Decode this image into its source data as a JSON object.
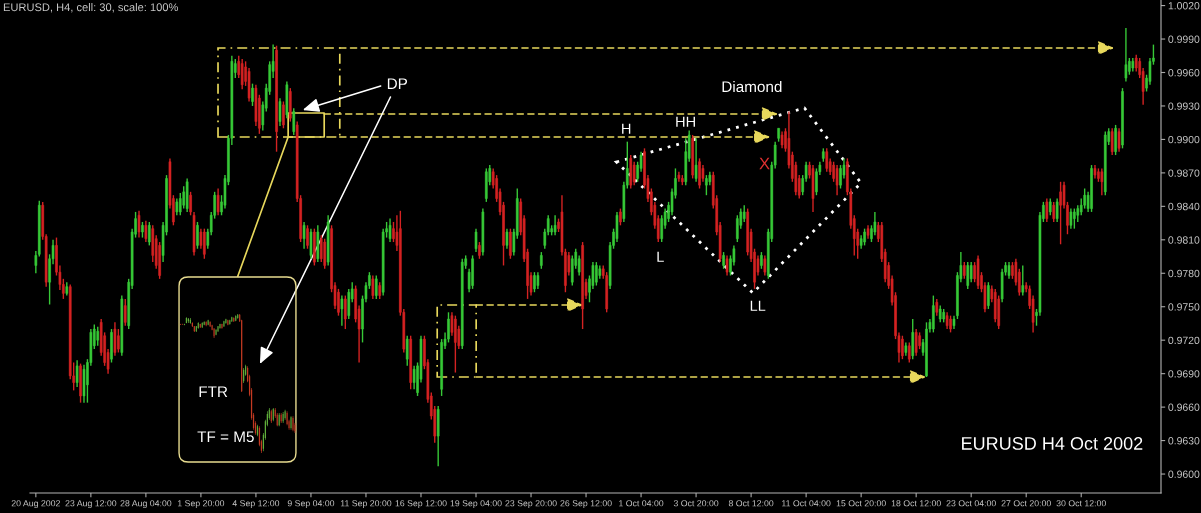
{
  "chart_data": {
    "type": "candlestick",
    "title": "EURUSD, H4, cell: 30, scale: 100%",
    "annotations": [
      "DP",
      "Diamond",
      "H",
      "HH",
      "L",
      "LL",
      "X",
      "FTR",
      "TF = M5",
      "EURUSD H4 Oct 2002"
    ],
    "categories": [
      "20 Aug 2002",
      null,
      null,
      null,
      null,
      null,
      null,
      null,
      null,
      null,
      null,
      null,
      null,
      null,
      null,
      null,
      "23 Aug 12:00",
      null,
      null,
      null,
      null,
      null,
      null,
      null,
      null,
      null,
      null,
      null,
      null,
      null,
      null,
      null,
      "28 Aug 04:00",
      null,
      null,
      null,
      null,
      null,
      null,
      null,
      null,
      null,
      null,
      null,
      null,
      null,
      null,
      null,
      "1 Sep 20:00",
      null,
      null,
      null,
      null,
      null,
      null,
      null,
      null,
      null,
      null,
      null,
      null,
      null,
      null,
      null,
      "4 Sep 12:00",
      null,
      null,
      null,
      null,
      null,
      null,
      null,
      null,
      null,
      null,
      null,
      null,
      null,
      null,
      null,
      "9 Sep 04:00",
      null,
      null,
      null,
      null,
      null,
      null,
      null,
      null,
      null,
      null,
      null,
      null,
      null,
      null,
      null,
      "11 Sep 20:00",
      null,
      null,
      null,
      null,
      null,
      null,
      null,
      null,
      null,
      null,
      null,
      null,
      null,
      null,
      null,
      "16 Sep 12:00",
      null,
      null,
      null,
      null,
      null,
      null,
      null,
      null,
      null,
      null,
      null,
      null,
      null,
      null,
      null,
      "19 Sep 04:00",
      null,
      null,
      null,
      null,
      null,
      null,
      null,
      null,
      null,
      null,
      null,
      null,
      null,
      null,
      null,
      "23 Sep 20:00",
      null,
      null,
      null,
      null,
      null,
      null,
      null,
      null,
      null,
      null,
      null,
      null,
      null,
      null,
      null,
      "26 Sep 12:00",
      null,
      null,
      null,
      null,
      null,
      null,
      null,
      null,
      null,
      null,
      null,
      null,
      null,
      null,
      null,
      "1 Oct 04:00",
      null,
      null,
      null,
      null,
      null,
      null,
      null,
      null,
      null,
      null,
      null,
      null,
      null,
      null,
      null,
      "3 Oct 20:00",
      null,
      null,
      null,
      null,
      null,
      null,
      null,
      null,
      null,
      null,
      null,
      null,
      null,
      null,
      null,
      "8 Oct 12:00",
      null,
      null,
      null,
      null,
      null,
      null,
      null,
      null,
      null,
      null,
      null,
      null,
      null,
      null,
      null,
      "11 Oct 04:00",
      null,
      null,
      null,
      null,
      null,
      null,
      null,
      null,
      null,
      null,
      null,
      null,
      null,
      null,
      null,
      "15 Oct 20:00",
      null,
      null,
      null,
      null,
      null,
      null,
      null,
      null,
      null,
      null,
      null,
      null,
      null,
      null,
      null,
      "18 Oct 12:00",
      null,
      null,
      null,
      null,
      null,
      null,
      null,
      null,
      null,
      null,
      null,
      null,
      null,
      null,
      null,
      "23 Oct 04:00",
      null,
      null,
      null,
      null,
      null,
      null,
      null,
      null,
      null,
      null,
      null,
      null,
      null,
      null,
      null,
      "27 Oct 20:00",
      null,
      null,
      null,
      null,
      null,
      null,
      null,
      null,
      null,
      null,
      null,
      null,
      null,
      null,
      null,
      "30 Oct 12:00",
      null,
      null,
      null,
      null,
      null,
      null,
      null,
      null,
      null,
      null,
      null,
      null,
      null,
      null,
      null,
      null,
      null,
      null,
      null,
      null,
      null
    ],
    "ohlc": [
      [
        0.9787,
        0.98,
        0.978,
        0.9796
      ],
      [
        0.9797,
        0.9845,
        0.9795,
        0.9841
      ],
      [
        0.9841,
        0.9844,
        0.981,
        0.9813
      ],
      [
        0.9813,
        0.9815,
        0.9768,
        0.9772
      ],
      [
        0.9772,
        0.9797,
        0.9752,
        0.9793
      ],
      [
        0.9793,
        0.981,
        0.9788,
        0.9805
      ],
      [
        0.9805,
        0.9812,
        0.9778,
        0.9781
      ],
      [
        0.9781,
        0.9787,
        0.9765,
        0.977
      ],
      [
        0.977,
        0.9775,
        0.9757,
        0.9762
      ],
      [
        0.9762,
        0.9772,
        0.976,
        0.9768
      ],
      [
        0.9768,
        0.977,
        0.9685,
        0.9688
      ],
      [
        0.9688,
        0.97,
        0.9675,
        0.9682
      ],
      [
        0.9682,
        0.9702,
        0.9678,
        0.9697
      ],
      [
        0.9697,
        0.9699,
        0.9664,
        0.967
      ],
      [
        0.967,
        0.9698,
        0.9664,
        0.9694
      ],
      [
        0.968,
        0.9703,
        0.9664,
        0.97
      ],
      [
        0.97,
        0.973,
        0.9697,
        0.9727
      ],
      [
        0.9715,
        0.9734,
        0.9712,
        0.973
      ],
      [
        0.972,
        0.9732,
        0.9715,
        0.9728
      ],
      [
        0.9736,
        0.9739,
        0.9706,
        0.9709
      ],
      [
        0.9724,
        0.9727,
        0.9697,
        0.97
      ],
      [
        0.9709,
        0.9712,
        0.969,
        0.9694
      ],
      [
        0.9703,
        0.973,
        0.97,
        0.9727
      ],
      [
        0.973,
        0.9736,
        0.9706,
        0.9709
      ],
      [
        0.9724,
        0.973,
        0.9709,
        0.9712
      ],
      [
        0.9709,
        0.976,
        0.9706,
        0.9757
      ],
      [
        0.9751,
        0.9757,
        0.9733,
        0.9736
      ],
      [
        0.9733,
        0.9775,
        0.973,
        0.9772
      ],
      [
        0.9769,
        0.982,
        0.9766,
        0.9817
      ],
      [
        0.9815,
        0.9835,
        0.9812,
        0.9829
      ],
      [
        0.9832,
        0.9836,
        0.9812,
        0.9817
      ],
      [
        0.9817,
        0.9826,
        0.9812,
        0.9823
      ],
      [
        0.9823,
        0.9827,
        0.9808,
        0.9811
      ],
      [
        0.9808,
        0.9826,
        0.9805,
        0.9823
      ],
      [
        0.982,
        0.9823,
        0.979,
        0.9796
      ],
      [
        0.9811,
        0.9814,
        0.9784,
        0.9787
      ],
      [
        0.9805,
        0.9808,
        0.9775,
        0.9778
      ],
      [
        0.9796,
        0.9826,
        0.979,
        0.9823
      ],
      [
        0.9817,
        0.9868,
        0.9814,
        0.9865
      ],
      [
        0.988,
        0.9883,
        0.9838,
        0.9841
      ],
      [
        0.9847,
        0.985,
        0.9823,
        0.9826
      ],
      [
        0.9835,
        0.9847,
        0.9832,
        0.9844
      ],
      [
        0.9835,
        0.9852,
        0.9832,
        0.9847
      ],
      [
        0.9841,
        0.9858,
        0.9838,
        0.9853
      ],
      [
        0.9838,
        0.9865,
        0.9835,
        0.9862
      ],
      [
        0.985,
        0.9853,
        0.9832,
        0.9835
      ],
      [
        0.9832,
        0.9835,
        0.9796,
        0.9799
      ],
      [
        0.9805,
        0.9826,
        0.9802,
        0.9823
      ],
      [
        0.9817,
        0.982,
        0.9802,
        0.9805
      ],
      [
        0.9817,
        0.982,
        0.9793,
        0.9797
      ],
      [
        0.9805,
        0.982,
        0.9802,
        0.9817
      ],
      [
        0.9817,
        0.9835,
        0.9814,
        0.9832
      ],
      [
        0.9832,
        0.9853,
        0.9829,
        0.985
      ],
      [
        0.985,
        0.9856,
        0.9832,
        0.9835
      ],
      [
        0.9835,
        0.985,
        0.9832,
        0.9844
      ],
      [
        0.9841,
        0.9868,
        0.9838,
        0.9865
      ],
      [
        0.9862,
        0.9904,
        0.9859,
        0.9901
      ],
      [
        0.9901,
        0.9975,
        0.9895,
        0.997
      ],
      [
        0.996,
        0.9972,
        0.9955,
        0.9968
      ],
      [
        0.997,
        0.9975,
        0.9955,
        0.9958
      ],
      [
        0.9968,
        0.9972,
        0.9945,
        0.9949
      ],
      [
        0.9965,
        0.997,
        0.9948,
        0.9952
      ],
      [
        0.9961,
        0.9964,
        0.9934,
        0.9937
      ],
      [
        0.9934,
        0.995,
        0.993,
        0.9946
      ],
      [
        0.9946,
        0.9949,
        0.9912,
        0.9916
      ],
      [
        0.9937,
        0.994,
        0.9905,
        0.991
      ],
      [
        0.9913,
        0.9934,
        0.9908,
        0.9931
      ],
      [
        0.9928,
        0.995,
        0.9925,
        0.9946
      ],
      [
        0.9943,
        0.997,
        0.994,
        0.9967
      ],
      [
        0.9961,
        0.9985,
        0.9955,
        0.997
      ],
      [
        0.998,
        0.9984,
        0.9889,
        0.9907
      ],
      [
        0.9916,
        0.9937,
        0.9912,
        0.9934
      ],
      [
        0.9931,
        0.9934,
        0.991,
        0.9913
      ],
      [
        0.9922,
        0.9952,
        0.9919,
        0.9949
      ],
      [
        0.9943,
        0.9946,
        0.9916,
        0.9919
      ],
      [
        0.9907,
        0.9928,
        0.9904,
        0.9925
      ],
      [
        0.9913,
        0.9916,
        0.9844,
        0.9847
      ],
      [
        0.9847,
        0.985,
        0.9808,
        0.9811
      ],
      [
        0.9811,
        0.9826,
        0.9802,
        0.9823
      ],
      [
        0.982,
        0.9823,
        0.9802,
        0.9805
      ],
      [
        0.9796,
        0.982,
        0.9793,
        0.9817
      ],
      [
        0.9817,
        0.982,
        0.9787,
        0.979
      ],
      [
        0.9793,
        0.9823,
        0.979,
        0.9817
      ],
      [
        0.9811,
        0.9814,
        0.979,
        0.9793
      ],
      [
        0.9808,
        0.9811,
        0.9784,
        0.9787
      ],
      [
        0.979,
        0.9832,
        0.9787,
        0.9826
      ],
      [
        0.982,
        0.9823,
        0.9763,
        0.9766
      ],
      [
        0.9769,
        0.9772,
        0.9748,
        0.9751
      ],
      [
        0.9763,
        0.9766,
        0.9742,
        0.9745
      ],
      [
        0.9748,
        0.976,
        0.9733,
        0.9757
      ],
      [
        0.9757,
        0.976,
        0.973,
        0.9739
      ],
      [
        0.9742,
        0.9766,
        0.9739,
        0.9763
      ],
      [
        0.9757,
        0.9772,
        0.9754,
        0.9766
      ],
      [
        0.9766,
        0.9769,
        0.9736,
        0.9739
      ],
      [
        0.9748,
        0.9751,
        0.97,
        0.973
      ],
      [
        0.973,
        0.976,
        0.9718,
        0.9757
      ],
      [
        0.9757,
        0.9772,
        0.9754,
        0.9769
      ],
      [
        0.9769,
        0.9781,
        0.9766,
        0.9778
      ],
      [
        0.9775,
        0.9778,
        0.9757,
        0.976
      ],
      [
        0.976,
        0.9778,
        0.9757,
        0.9775
      ],
      [
        0.9769,
        0.9772,
        0.9757,
        0.976
      ],
      [
        0.9763,
        0.982,
        0.976,
        0.9817
      ],
      [
        0.9817,
        0.9826,
        0.9812,
        0.982
      ],
      [
        0.9811,
        0.9829,
        0.9808,
        0.9823
      ],
      [
        0.982,
        0.9826,
        0.9808,
        0.9811
      ],
      [
        0.9817,
        0.9832,
        0.98,
        0.9805
      ],
      [
        0.982,
        0.9836,
        0.9742,
        0.9745
      ],
      [
        0.9745,
        0.9748,
        0.9709,
        0.9712
      ],
      [
        0.9703,
        0.9724,
        0.9697,
        0.9721
      ],
      [
        0.9721,
        0.9724,
        0.9676,
        0.9682
      ],
      [
        0.9682,
        0.9697,
        0.9676,
        0.9694
      ],
      [
        0.9673,
        0.97,
        0.967,
        0.9697
      ],
      [
        0.9685,
        0.9724,
        0.9682,
        0.9721
      ],
      [
        0.9721,
        0.9724,
        0.9694,
        0.9697
      ],
      [
        0.97,
        0.9703,
        0.9664,
        0.9667
      ],
      [
        0.967,
        0.9673,
        0.9649,
        0.9652
      ],
      [
        0.9658,
        0.9661,
        0.9628,
        0.9634
      ],
      [
        0.9634,
        0.9661,
        0.9607,
        0.9658
      ],
      [
        0.9676,
        0.9721,
        0.967,
        0.9718
      ],
      [
        0.9715,
        0.9727,
        0.9712,
        0.9721
      ],
      [
        0.9721,
        0.9745,
        0.9718,
        0.9739
      ],
      [
        0.9742,
        0.9745,
        0.9724,
        0.9727
      ],
      [
        0.9739,
        0.9742,
        0.9691,
        0.9718
      ],
      [
        0.973,
        0.9733,
        0.9712,
        0.9715
      ],
      [
        0.9715,
        0.9793,
        0.9712,
        0.979
      ],
      [
        0.9787,
        0.9796,
        0.9784,
        0.9793
      ],
      [
        0.9766,
        0.9784,
        0.9763,
        0.9781
      ],
      [
        0.9769,
        0.9796,
        0.9766,
        0.9793
      ],
      [
        0.9802,
        0.982,
        0.9799,
        0.9817
      ],
      [
        0.9805,
        0.9808,
        0.9793,
        0.9796
      ],
      [
        0.9799,
        0.9838,
        0.9796,
        0.9835
      ],
      [
        0.9847,
        0.9874,
        0.9844,
        0.9871
      ],
      [
        0.9862,
        0.9877,
        0.9859,
        0.9874
      ],
      [
        0.9871,
        0.9874,
        0.9856,
        0.9859
      ],
      [
        0.9865,
        0.9868,
        0.9844,
        0.9847
      ],
      [
        0.9853,
        0.9856,
        0.9832,
        0.9835
      ],
      [
        0.9841,
        0.9844,
        0.9787,
        0.9805
      ],
      [
        0.9805,
        0.982,
        0.9802,
        0.9817
      ],
      [
        0.9817,
        0.982,
        0.9793,
        0.9796
      ],
      [
        0.9799,
        0.982,
        0.9796,
        0.9817
      ],
      [
        0.9814,
        0.9856,
        0.9811,
        0.9847
      ],
      [
        0.9844,
        0.9847,
        0.9814,
        0.9817
      ],
      [
        0.9829,
        0.9832,
        0.979,
        0.9793
      ],
      [
        0.9799,
        0.9802,
        0.9757,
        0.9769
      ],
      [
        0.9778,
        0.9781,
        0.976,
        0.9763
      ],
      [
        0.9766,
        0.9781,
        0.9763,
        0.9778
      ],
      [
        0.9769,
        0.9781,
        0.9766,
        0.9778
      ],
      [
        0.9787,
        0.9799,
        0.9784,
        0.9796
      ],
      [
        0.9805,
        0.982,
        0.9802,
        0.9817
      ],
      [
        0.9817,
        0.9832,
        0.9814,
        0.9829
      ],
      [
        0.9817,
        0.9823,
        0.9814,
        0.982
      ],
      [
        0.9817,
        0.9832,
        0.9814,
        0.9823
      ],
      [
        0.9826,
        0.9829,
        0.9817,
        0.982
      ],
      [
        0.9835,
        0.985,
        0.9796,
        0.9799
      ],
      [
        0.9799,
        0.9802,
        0.9763,
        0.9769
      ],
      [
        0.9796,
        0.9799,
        0.9778,
        0.9781
      ],
      [
        0.9772,
        0.9796,
        0.9769,
        0.9793
      ],
      [
        0.9787,
        0.9802,
        0.9784,
        0.9799
      ],
      [
        0.9781,
        0.9796,
        0.9778,
        0.9793
      ],
      [
        0.9805,
        0.9808,
        0.973,
        0.9748
      ],
      [
        0.9772,
        0.9775,
        0.9757,
        0.976
      ],
      [
        0.9763,
        0.9778,
        0.9754,
        0.9775
      ],
      [
        0.9769,
        0.979,
        0.9766,
        0.9787
      ],
      [
        0.9772,
        0.979,
        0.9769,
        0.9787
      ],
      [
        0.9778,
        0.9787,
        0.9775,
        0.9784
      ],
      [
        0.9784,
        0.9787,
        0.9775,
        0.9778
      ],
      [
        0.9778,
        0.9781,
        0.9745,
        0.9748
      ],
      [
        0.9769,
        0.9808,
        0.9766,
        0.9805
      ],
      [
        0.9805,
        0.982,
        0.9802,
        0.9817
      ],
      [
        0.9811,
        0.9835,
        0.9808,
        0.9832
      ],
      [
        0.9835,
        0.9838,
        0.9823,
        0.9826
      ],
      [
        0.9829,
        0.9862,
        0.9826,
        0.9859
      ],
      [
        0.9859,
        0.9898,
        0.9856,
        0.9874
      ],
      [
        0.9883,
        0.9886,
        0.9856,
        0.9859
      ],
      [
        0.9877,
        0.988,
        0.9859,
        0.9862
      ],
      [
        0.9865,
        0.988,
        0.9862,
        0.9877
      ],
      [
        0.9874,
        0.9889,
        0.9871,
        0.9886
      ],
      [
        0.9889,
        0.9892,
        0.9856,
        0.9859
      ],
      [
        0.9865,
        0.9868,
        0.9844,
        0.9847
      ],
      [
        0.9853,
        0.9856,
        0.9832,
        0.9835
      ],
      [
        0.9841,
        0.9844,
        0.982,
        0.9823
      ],
      [
        0.9829,
        0.9832,
        0.9808,
        0.9811
      ],
      [
        0.9811,
        0.9832,
        0.9808,
        0.9829
      ],
      [
        0.9823,
        0.9838,
        0.982,
        0.9835
      ],
      [
        0.9829,
        0.9844,
        0.9826,
        0.9841
      ],
      [
        0.9835,
        0.9856,
        0.9832,
        0.9853
      ],
      [
        0.985,
        0.9874,
        0.9847,
        0.9865
      ],
      [
        0.9868,
        0.9871,
        0.9862,
        0.9865
      ],
      [
        0.9865,
        0.9868,
        0.9859,
        0.9862
      ],
      [
        0.9862,
        0.9901,
        0.9859,
        0.9889
      ],
      [
        0.9883,
        0.9908,
        0.988,
        0.9904
      ],
      [
        0.9901,
        0.9904,
        0.9865,
        0.9868
      ],
      [
        0.9865,
        0.9901,
        0.9862,
        0.9877
      ],
      [
        0.988,
        0.9883,
        0.9856,
        0.9859
      ],
      [
        0.9874,
        0.9877,
        0.9862,
        0.9865
      ],
      [
        0.9859,
        0.9868,
        0.985,
        0.9865
      ],
      [
        0.9862,
        0.9871,
        0.9859,
        0.9868
      ],
      [
        0.9868,
        0.9871,
        0.9838,
        0.9841
      ],
      [
        0.9847,
        0.985,
        0.9814,
        0.9817
      ],
      [
        0.9823,
        0.9826,
        0.979,
        0.9793
      ],
      [
        0.9787,
        0.9799,
        0.9784,
        0.9796
      ],
      [
        0.9793,
        0.9796,
        0.9778,
        0.9781
      ],
      [
        0.9781,
        0.9796,
        0.9778,
        0.9793
      ],
      [
        0.979,
        0.9805,
        0.9787,
        0.9802
      ],
      [
        0.9811,
        0.9832,
        0.9808,
        0.9829
      ],
      [
        0.9823,
        0.9838,
        0.982,
        0.9835
      ],
      [
        0.9829,
        0.9841,
        0.9826,
        0.9835
      ],
      [
        0.9835,
        0.9838,
        0.9796,
        0.9799
      ],
      [
        0.9817,
        0.982,
        0.979,
        0.9793
      ],
      [
        0.9799,
        0.9802,
        0.9766,
        0.9772
      ],
      [
        0.9793,
        0.9796,
        0.9778,
        0.9781
      ],
      [
        0.9787,
        0.9799,
        0.9784,
        0.9796
      ],
      [
        0.9793,
        0.9796,
        0.9778,
        0.9781
      ],
      [
        0.9778,
        0.982,
        0.9775,
        0.9817
      ],
      [
        0.9811,
        0.988,
        0.9808,
        0.9877
      ],
      [
        0.9877,
        0.9898,
        0.9874,
        0.9895
      ],
      [
        0.9901,
        0.991,
        0.9898,
        0.991
      ],
      [
        0.9904,
        0.9907,
        0.9892,
        0.9895
      ],
      [
        0.9907,
        0.991,
        0.9889,
        0.9892
      ],
      [
        0.9901,
        0.9925,
        0.9874,
        0.9877
      ],
      [
        0.9886,
        0.9889,
        0.9862,
        0.9865
      ],
      [
        0.9877,
        0.988,
        0.985,
        0.9853
      ],
      [
        0.9865,
        0.9868,
        0.9847,
        0.985
      ],
      [
        0.9853,
        0.9868,
        0.985,
        0.9865
      ],
      [
        0.9865,
        0.988,
        0.9862,
        0.9877
      ],
      [
        0.9877,
        0.988,
        0.9865,
        0.9868
      ],
      [
        0.9874,
        0.9877,
        0.9835,
        0.9847
      ],
      [
        0.9853,
        0.9874,
        0.985,
        0.9871
      ],
      [
        0.9871,
        0.988,
        0.9868,
        0.9877
      ],
      [
        0.9883,
        0.9892,
        0.988,
        0.9889
      ],
      [
        0.9889,
        0.9892,
        0.9871,
        0.9874
      ],
      [
        0.988,
        0.9883,
        0.9868,
        0.9871
      ],
      [
        0.9877,
        0.988,
        0.9862,
        0.9865
      ],
      [
        0.9874,
        0.9877,
        0.985,
        0.9859
      ],
      [
        0.9859,
        0.9877,
        0.9856,
        0.9874
      ],
      [
        0.9868,
        0.9883,
        0.9865,
        0.9877
      ],
      [
        0.988,
        0.9883,
        0.985,
        0.9853
      ],
      [
        0.9853,
        0.9856,
        0.982,
        0.9823
      ],
      [
        0.9829,
        0.9832,
        0.9796,
        0.9811
      ],
      [
        0.9817,
        0.982,
        0.9793,
        0.9805
      ],
      [
        0.9805,
        0.9814,
        0.9802,
        0.9811
      ],
      [
        0.9808,
        0.982,
        0.9805,
        0.9817
      ],
      [
        0.982,
        0.9823,
        0.9811,
        0.9814
      ],
      [
        0.9811,
        0.9823,
        0.9808,
        0.982
      ],
      [
        0.9817,
        0.9835,
        0.9814,
        0.9826
      ],
      [
        0.9823,
        0.9826,
        0.9808,
        0.9811
      ],
      [
        0.9823,
        0.9826,
        0.979,
        0.9793
      ],
      [
        0.9799,
        0.9802,
        0.9772,
        0.9775
      ],
      [
        0.9787,
        0.979,
        0.9766,
        0.9769
      ],
      [
        0.9775,
        0.9778,
        0.9751,
        0.9754
      ],
      [
        0.976,
        0.9763,
        0.9721,
        0.9724
      ],
      [
        0.9724,
        0.9727,
        0.97,
        0.9709
      ],
      [
        0.9721,
        0.9724,
        0.9703,
        0.9706
      ],
      [
        0.9709,
        0.9718,
        0.9706,
        0.9715
      ],
      [
        0.9715,
        0.9718,
        0.97,
        0.9703
      ],
      [
        0.9706,
        0.9739,
        0.9703,
        0.9727
      ],
      [
        0.9727,
        0.973,
        0.9706,
        0.9709
      ],
      [
        0.9724,
        0.9727,
        0.9712,
        0.9715
      ],
      [
        0.9709,
        0.9721,
        0.9706,
        0.9718
      ],
      [
        0.9688,
        0.9736,
        0.9687,
        0.973
      ],
      [
        0.973,
        0.9739,
        0.9727,
        0.9736
      ],
      [
        0.973,
        0.976,
        0.9727,
        0.9751
      ],
      [
        0.9754,
        0.9757,
        0.9742,
        0.9745
      ],
      [
        0.9739,
        0.9751,
        0.9736,
        0.9748
      ],
      [
        0.9739,
        0.9748,
        0.9736,
        0.9745
      ],
      [
        0.9742,
        0.9745,
        0.973,
        0.9733
      ],
      [
        0.9739,
        0.9742,
        0.9727,
        0.973
      ],
      [
        0.9733,
        0.9742,
        0.973,
        0.9739
      ],
      [
        0.9742,
        0.9781,
        0.9739,
        0.9778
      ],
      [
        0.9775,
        0.9799,
        0.9772,
        0.9787
      ],
      [
        0.9787,
        0.979,
        0.9775,
        0.9778
      ],
      [
        0.9769,
        0.979,
        0.9766,
        0.9787
      ],
      [
        0.9775,
        0.979,
        0.9772,
        0.9787
      ],
      [
        0.9787,
        0.979,
        0.9772,
        0.9775
      ],
      [
        0.9793,
        0.9796,
        0.9766,
        0.9769
      ],
      [
        0.9778,
        0.9781,
        0.9763,
        0.9766
      ],
      [
        0.9769,
        0.9772,
        0.9745,
        0.9748
      ],
      [
        0.9751,
        0.9772,
        0.9748,
        0.9769
      ],
      [
        0.9766,
        0.9769,
        0.9754,
        0.9757
      ],
      [
        0.9763,
        0.9766,
        0.9736,
        0.9739
      ],
      [
        0.9757,
        0.976,
        0.973,
        0.9733
      ],
      [
        0.9757,
        0.9784,
        0.9754,
        0.9781
      ],
      [
        0.9781,
        0.979,
        0.9778,
        0.9787
      ],
      [
        0.9778,
        0.979,
        0.9775,
        0.9787
      ],
      [
        0.9787,
        0.979,
        0.9775,
        0.9778
      ],
      [
        0.979,
        0.9793,
        0.9769,
        0.9772
      ],
      [
        0.9781,
        0.9784,
        0.976,
        0.9763
      ],
      [
        0.9763,
        0.9787,
        0.976,
        0.9769
      ],
      [
        0.9769,
        0.9772,
        0.9763,
        0.9766
      ],
      [
        0.9766,
        0.9769,
        0.9748,
        0.9751
      ],
      [
        0.9757,
        0.976,
        0.9727,
        0.9736
      ],
      [
        0.9742,
        0.9748,
        0.9733,
        0.9745
      ],
      [
        0.9745,
        0.9835,
        0.9742,
        0.9832
      ],
      [
        0.9829,
        0.9844,
        0.9826,
        0.9841
      ],
      [
        0.9844,
        0.9847,
        0.9826,
        0.9829
      ],
      [
        0.9835,
        0.9847,
        0.9832,
        0.9844
      ],
      [
        0.9841,
        0.9844,
        0.9826,
        0.9829
      ],
      [
        0.9829,
        0.9847,
        0.9826,
        0.9844
      ],
      [
        0.9853,
        0.9862,
        0.9806,
        0.9841
      ],
      [
        0.9859,
        0.9862,
        0.9838,
        0.9841
      ],
      [
        0.9841,
        0.9844,
        0.9815,
        0.9823
      ],
      [
        0.9823,
        0.9838,
        0.982,
        0.9835
      ],
      [
        0.9829,
        0.9838,
        0.982,
        0.9835
      ],
      [
        0.9832,
        0.9841,
        0.9826,
        0.9838
      ],
      [
        0.9835,
        0.9847,
        0.9832,
        0.9841
      ],
      [
        0.9841,
        0.9856,
        0.9838,
        0.985
      ],
      [
        0.9838,
        0.9853,
        0.9835,
        0.985
      ],
      [
        0.9838,
        0.9877,
        0.9835,
        0.9874
      ],
      [
        0.9874,
        0.9877,
        0.9865,
        0.9868
      ],
      [
        0.9871,
        0.9874,
        0.9862,
        0.9865
      ],
      [
        0.9871,
        0.9874,
        0.985,
        0.9862
      ],
      [
        0.9853,
        0.9907,
        0.985,
        0.9904
      ],
      [
        0.9898,
        0.991,
        0.9895,
        0.9907
      ],
      [
        0.9907,
        0.991,
        0.9886,
        0.9889
      ],
      [
        0.9889,
        0.9913,
        0.9886,
        0.991
      ],
      [
        0.9907,
        0.991,
        0.9889,
        0.9892
      ],
      [
        0.9895,
        0.9946,
        0.9892,
        0.9943
      ],
      [
        0.9955,
        1.0,
        0.9952,
        0.9967
      ],
      [
        0.9961,
        0.9973,
        0.9958,
        0.997
      ],
      [
        0.9964,
        0.9973,
        0.9961,
        0.997
      ],
      [
        0.9973,
        0.9976,
        0.9961,
        0.9964
      ],
      [
        0.997,
        0.9973,
        0.9955,
        0.9958
      ],
      [
        0.9961,
        0.9964,
        0.9931,
        0.9943
      ],
      [
        0.9946,
        0.9958,
        0.9943,
        0.9955
      ],
      [
        0.9952,
        0.9973,
        0.9949,
        0.997
      ],
      [
        0.997,
        0.9985,
        0.9967,
        0.9973
      ]
    ],
    "colors": [
      "#37c837",
      "#37c837",
      "#d42222",
      "#d42222",
      "#37c837",
      "#37c837",
      "#d42222",
      "#d42222",
      "#d42222",
      "#37c837",
      "#d42222",
      "#d42222",
      "#37c837",
      "#d42222",
      "#37c837",
      "#37c837",
      "#37c837",
      "#37c837",
      "#37c837",
      "#d42222",
      "#d42222",
      "#d42222",
      "#37c837",
      "#d42222",
      "#d42222",
      "#37c837",
      "#d42222",
      "#37c837",
      "#37c837",
      "#37c837",
      "#d42222",
      "#37c837",
      "#d42222",
      "#37c837",
      "#d42222",
      "#d42222",
      "#d42222",
      "#37c837",
      "#37c837",
      "#d42222",
      "#d42222",
      "#37c837",
      "#37c837",
      "#37c837",
      "#37c837",
      "#d42222",
      "#d42222",
      "#37c837",
      "#d42222",
      "#d42222",
      "#37c837",
      "#37c837",
      "#37c837",
      "#d42222",
      "#37c837",
      "#37c837",
      "#37c837",
      "#37c837",
      "#37c837",
      "#d42222",
      "#d42222",
      "#d42222",
      "#d42222",
      "#37c837",
      "#d42222",
      "#d42222",
      "#37c837",
      "#37c837",
      "#37c837",
      "#37c837",
      "#d42222",
      "#37c837",
      "#d42222",
      "#37c837",
      "#d42222",
      "#37c837",
      "#d42222",
      "#d42222",
      "#37c837",
      "#d42222",
      "#37c837",
      "#d42222",
      "#37c837",
      "#d42222",
      "#d42222",
      "#37c837",
      "#d42222",
      "#d42222",
      "#d42222",
      "#37c837",
      "#d42222",
      "#37c837",
      "#37c837",
      "#d42222",
      "#d42222",
      "#37c837",
      "#37c837",
      "#37c837",
      "#d42222",
      "#37c837",
      "#d42222",
      "#37c837",
      "#37c837",
      "#37c837",
      "#d42222",
      "#d42222",
      "#d42222",
      "#d42222",
      "#37c837",
      "#d42222",
      "#37c837",
      "#37c837",
      "#37c837",
      "#d42222",
      "#d42222",
      "#d42222",
      "#d42222",
      "#37c837",
      "#37c837",
      "#37c837",
      "#37c837",
      "#d42222",
      "#d42222",
      "#d42222",
      "#37c837",
      "#37c837",
      "#37c837",
      "#37c837",
      "#37c837",
      "#d42222",
      "#37c837",
      "#37c837",
      "#37c837",
      "#d42222",
      "#d42222",
      "#d42222",
      "#d42222",
      "#37c837",
      "#d42222",
      "#37c837",
      "#37c837",
      "#d42222",
      "#d42222",
      "#d42222",
      "#d42222",
      "#37c837",
      "#37c837",
      "#37c837",
      "#37c837",
      "#37c837",
      "#37c837",
      "#37c837",
      "#d42222",
      "#d42222",
      "#d42222",
      "#d42222",
      "#37c837",
      "#37c837",
      "#37c837",
      "#d42222",
      "#d42222",
      "#37c837",
      "#37c837",
      "#37c837",
      "#37c837",
      "#d42222",
      "#d42222",
      "#37c837",
      "#37c837",
      "#37c837",
      "#d42222",
      "#37c837",
      "#37c837",
      "#d42222",
      "#d42222",
      "#37c837",
      "#37c837",
      "#d42222",
      "#d42222",
      "#d42222",
      "#d42222",
      "#d42222",
      "#37c837",
      "#37c837",
      "#37c837",
      "#37c837",
      "#37c837",
      "#d42222",
      "#d42222",
      "#37c837",
      "#37c837",
      "#d42222",
      "#37c837",
      "#d42222",
      "#d42222",
      "#37c837",
      "#37c837",
      "#d42222",
      "#d42222",
      "#d42222",
      "#37c837",
      "#d42222",
      "#37c837",
      "#37c837",
      "#37c837",
      "#37c837",
      "#37c837",
      "#d42222",
      "#d42222",
      "#d42222",
      "#d42222",
      "#37c837",
      "#d42222",
      "#37c837",
      "#37c837",
      "#37c837",
      "#37c837",
      "#d42222",
      "#d42222",
      "#d42222",
      "#d42222",
      "#d42222",
      "#d42222",
      "#37c837",
      "#37c837",
      "#d42222",
      "#d42222",
      "#37c837",
      "#37c837",
      "#37c837",
      "#d42222",
      "#d42222",
      "#d42222",
      "#d42222",
      "#37c837",
      "#37c837",
      "#d42222",
      "#d42222",
      "#d42222",
      "#d42222",
      "#37c837",
      "#37c837",
      "#d42222",
      "#37c837",
      "#37c837",
      "#d42222",
      "#d42222",
      "#d42222",
      "#d42222",
      "#d42222",
      "#d42222",
      "#d42222",
      "#d42222",
      "#37c837",
      "#d42222",
      "#37c837",
      "#d42222",
      "#d42222",
      "#37c837",
      "#37c837",
      "#37c837",
      "#37c837",
      "#d42222",
      "#37c837",
      "#37c837",
      "#d42222",
      "#d42222",
      "#37c837",
      "#37c837",
      "#37c837",
      "#d42222",
      "#37c837",
      "#37c837",
      "#d42222",
      "#d42222",
      "#d42222",
      "#d42222",
      "#37c837",
      "#d42222",
      "#d42222",
      "#d42222",
      "#37c837",
      "#37c837",
      "#37c837",
      "#d42222",
      "#d42222",
      "#d42222",
      "#37c837",
      "#d42222",
      "#d42222",
      "#d42222",
      "#37c837",
      "#37c837",
      "#37c837",
      "#d42222",
      "#37c837",
      "#d42222",
      "#37c837",
      "#d42222",
      "#d42222",
      "#d42222",
      "#37c837",
      "#37c837",
      "#37c837",
      "#37c837",
      "#37c837",
      "#37c837",
      "#37c837",
      "#d42222",
      "#d42222",
      "#d42222",
      "#37c837",
      "#37c837",
      "#d42222",
      "#37c837",
      "#d42222",
      "#37c837",
      "#37c837",
      "#37c837",
      "#37c837",
      "#d42222",
      "#d42222",
      "#d42222",
      "#37c837",
      "#37c837",
      "#37c837"
    ],
    "ylim": [
      0.9583,
      1.0025
    ],
    "yticks": [
      {
        "value": 0.96,
        "label": "0.9600"
      },
      {
        "value": 0.963,
        "label": "0.9630"
      },
      {
        "value": 0.966,
        "label": "0.9660"
      },
      {
        "value": 0.969,
        "label": "0.9690"
      },
      {
        "value": 0.972,
        "label": "0.9720"
      },
      {
        "value": 0.975,
        "label": "0.9750"
      },
      {
        "value": 0.978,
        "label": "0.9780"
      },
      {
        "value": 0.981,
        "label": "0.9810"
      },
      {
        "value": 0.984,
        "label": "0.9840"
      },
      {
        "value": 0.987,
        "label": "0.9870"
      },
      {
        "value": 0.99,
        "label": "0.9900"
      },
      {
        "value": 0.993,
        "label": "0.9930"
      },
      {
        "value": 0.996,
        "label": "0.9960"
      },
      {
        "value": 0.999,
        "label": "0.9990"
      },
      {
        "value": 1.002,
        "label": "1.0020"
      }
    ]
  }
}
